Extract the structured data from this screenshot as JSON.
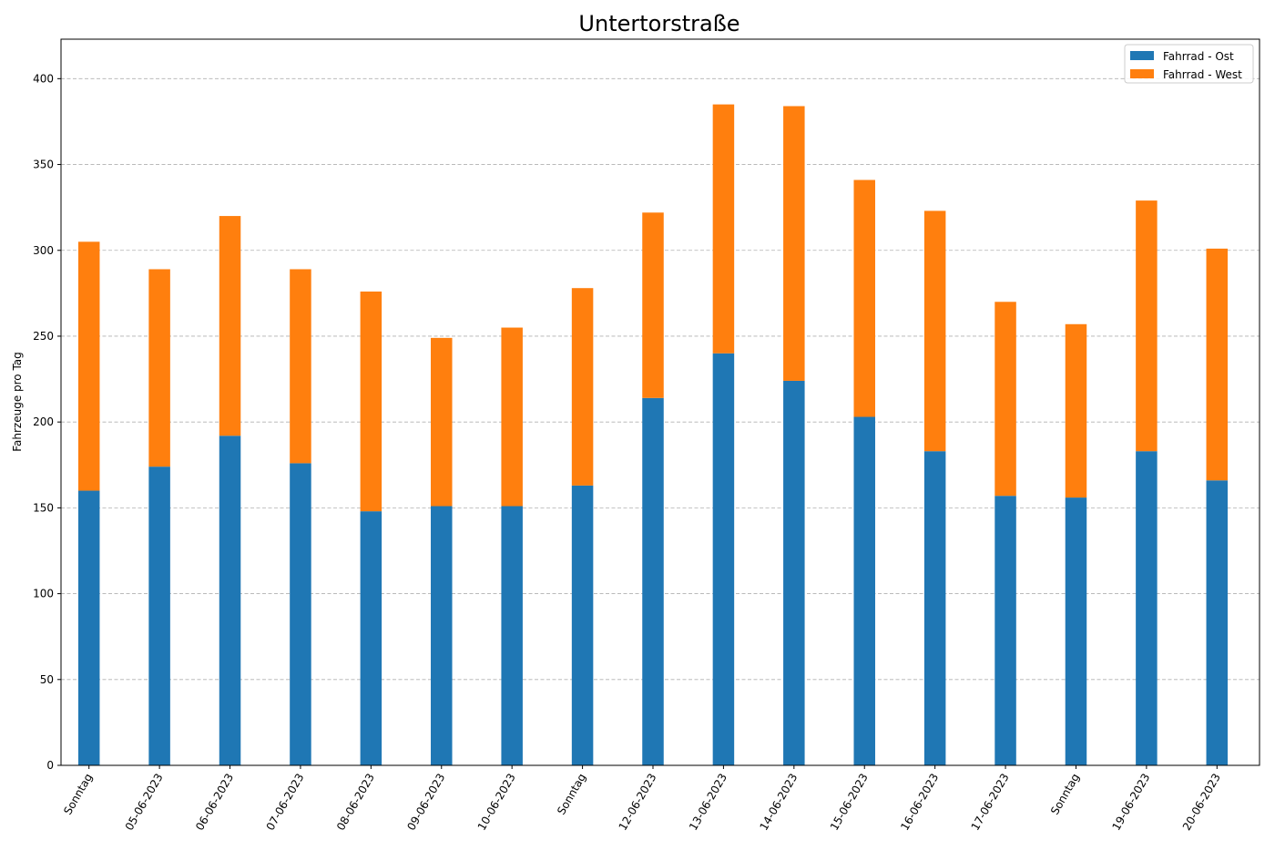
{
  "chart_data": {
    "type": "bar",
    "stacked": true,
    "title": "Untertorstraße",
    "xlabel": "",
    "ylabel": "Fahrzeuge pro Tag",
    "ylim": [
      0,
      423
    ],
    "yticks": [
      0,
      50,
      100,
      150,
      200,
      250,
      300,
      350,
      400
    ],
    "grid": "y-dashed",
    "legend_position": "top-right",
    "categories": [
      "Sonntag",
      "05-06-2023",
      "06-06-2023",
      "07-06-2023",
      "08-06-2023",
      "09-06-2023",
      "10-06-2023",
      "Sonntag",
      "12-06-2023",
      "13-06-2023",
      "14-06-2023",
      "15-06-2023",
      "16-06-2023",
      "17-06-2023",
      "Sonntag",
      "19-06-2023",
      "20-06-2023"
    ],
    "series": [
      {
        "name": "Fahrrad - Ost",
        "color": "#1f77b4",
        "values": [
          160,
          174,
          192,
          176,
          148,
          151,
          151,
          163,
          214,
          240,
          224,
          203,
          183,
          157,
          156,
          183,
          166
        ]
      },
      {
        "name": "Fahrrad - West",
        "color": "#ff7f0e",
        "values": [
          145,
          115,
          128,
          113,
          128,
          98,
          104,
          115,
          108,
          145,
          160,
          138,
          140,
          113,
          101,
          146,
          135
        ]
      }
    ]
  }
}
